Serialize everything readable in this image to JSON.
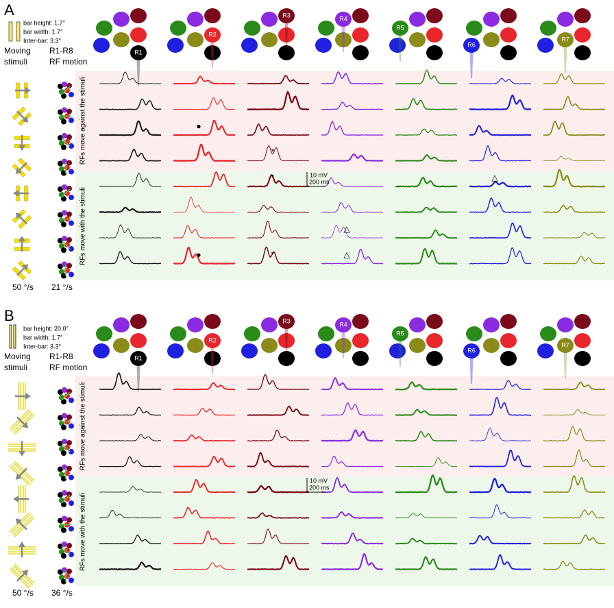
{
  "panels": [
    {
      "label": "A",
      "params": [
        "bar height: 1.7°",
        "bar width: 1.7°",
        "Inter-bar: 3.3°"
      ],
      "heading_stimuli": [
        "Moving",
        "stimuli"
      ],
      "heading_rf": [
        "R1-R8",
        "RF motion"
      ],
      "cells": [
        "R1",
        "R2",
        "R3",
        "R4",
        "R5",
        "R6",
        "R7"
      ],
      "groups": [
        "RFs move against the stimuli",
        "RFs move with the stimuli"
      ],
      "scale": [
        "10 mV",
        "200 ms"
      ],
      "speeds": [
        "50 °/s",
        "21 °/s"
      ],
      "markers": [
        "●",
        "*",
        "*",
        "△",
        "△",
        "●",
        "*",
        "△"
      ]
    },
    {
      "label": "B",
      "params": [
        "bar height: 20.0°",
        "bar width: 1.7°",
        "Inter-bar: 3.3°"
      ],
      "heading_stimuli": [
        "Moving",
        "stimuli"
      ],
      "heading_rf": [
        "R1-R8",
        "RF motion"
      ],
      "cells": [
        "R1",
        "R2",
        "R3",
        "R4",
        "R5",
        "R6",
        "R7"
      ],
      "groups": [
        "RFs move against the stimuli",
        "RFs move with the stimuli"
      ],
      "scale": [
        "10 mV",
        "200 ms"
      ],
      "speeds": [
        "50 °/s",
        "36 °/s"
      ],
      "markers": []
    }
  ]
}
